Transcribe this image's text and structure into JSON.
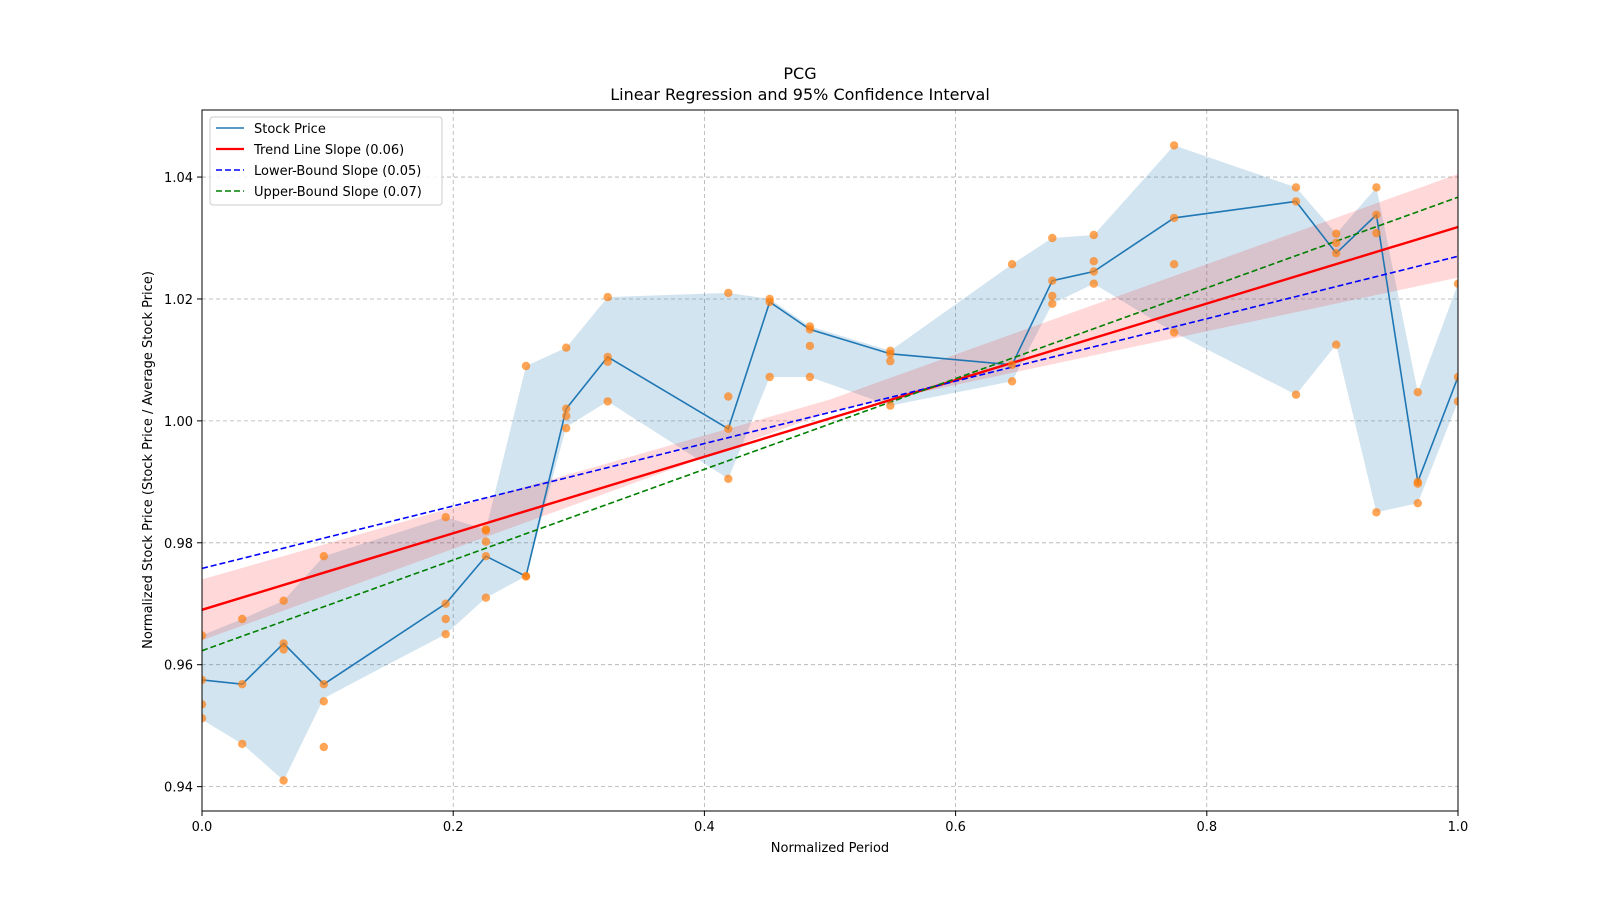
{
  "chart_data": {
    "type": "line",
    "title": "PCG",
    "subtitle": "Linear Regression and 95% Confidence Interval",
    "xlabel": "Normalized Period",
    "ylabel": "Normalized Stock Price (Stock Price / Average Stock Price)",
    "xlim": [
      0.0,
      1.0
    ],
    "ylim": [
      0.936,
      1.051
    ],
    "xticks": [
      0.0,
      0.2,
      0.4,
      0.6,
      0.8,
      1.0
    ],
    "xtick_labels": [
      "0.0",
      "0.2",
      "0.4",
      "0.6",
      "0.8",
      "1.0"
    ],
    "yticks": [
      0.94,
      0.96,
      0.98,
      1.0,
      1.02,
      1.04
    ],
    "ytick_labels": [
      "0.94",
      "0.96",
      "0.98",
      "1.00",
      "1.02",
      "1.04"
    ],
    "grid": true,
    "legend_position": "top-left",
    "legend": [
      {
        "label": "Stock Price",
        "color": "#1f77b4",
        "style": "solid"
      },
      {
        "label": "Trend Line Slope (0.06)",
        "color": "#ff0000",
        "style": "solid"
      },
      {
        "label": "Lower-Bound Slope (0.05)",
        "color": "#0000ff",
        "style": "dashed"
      },
      {
        "label": "Upper-Bound Slope (0.07)",
        "color": "#008000",
        "style": "dashed"
      }
    ],
    "colors": {
      "price_line": "#1f77b4",
      "price_band": "#1f77b4",
      "scatter": "#ff7f0e",
      "trend": "#ff0000",
      "trend_band": "#ff0000",
      "lower": "#0000ff",
      "upper": "#008000"
    },
    "price_series": {
      "name": "Stock Price",
      "x": [
        0.0,
        0.032,
        0.065,
        0.097,
        0.194,
        0.226,
        0.258,
        0.29,
        0.323,
        0.419,
        0.452,
        0.484,
        0.548,
        0.645,
        0.677,
        0.71,
        0.774,
        0.871,
        0.903,
        0.935,
        0.968,
        1.0
      ],
      "y": [
        0.9575,
        0.9568,
        0.9635,
        0.9568,
        0.97,
        0.9778,
        0.9745,
        1.002,
        1.0105,
        0.9987,
        1.0195,
        1.015,
        1.011,
        1.0092,
        1.023,
        1.0245,
        1.0333,
        1.036,
        1.0275,
        1.0338,
        0.99,
        1.0072
      ]
    },
    "price_band": {
      "x": [
        0.0,
        0.032,
        0.065,
        0.097,
        0.194,
        0.226,
        0.258,
        0.29,
        0.323,
        0.419,
        0.452,
        0.484,
        0.548,
        0.645,
        0.677,
        0.71,
        0.774,
        0.871,
        0.903,
        0.935,
        0.968,
        1.0
      ],
      "lower": [
        0.951,
        0.947,
        0.941,
        0.9545,
        0.965,
        0.971,
        0.9745,
        0.999,
        1.0032,
        0.9905,
        1.0072,
        1.0072,
        1.0025,
        1.0065,
        1.0192,
        1.0225,
        1.0145,
        1.0043,
        1.0125,
        0.985,
        0.9865,
        1.0032
      ],
      "upper": [
        0.9648,
        0.9675,
        0.9705,
        0.9778,
        0.9842,
        0.9822,
        1.009,
        1.012,
        1.0203,
        1.021,
        1.02,
        1.0155,
        1.0115,
        1.0257,
        1.03,
        1.0305,
        1.0452,
        1.0383,
        1.0307,
        1.0383,
        1.0047,
        1.0225
      ]
    },
    "scatter_points": {
      "x": [
        0.0,
        0.0,
        0.0,
        0.0,
        0.032,
        0.032,
        0.032,
        0.065,
        0.065,
        0.065,
        0.065,
        0.097,
        0.097,
        0.097,
        0.097,
        0.194,
        0.194,
        0.194,
        0.194,
        0.226,
        0.226,
        0.226,
        0.226,
        0.226,
        0.258,
        0.258,
        0.258,
        0.29,
        0.29,
        0.29,
        0.29,
        0.323,
        0.323,
        0.323,
        0.323,
        0.419,
        0.419,
        0.419,
        0.419,
        0.452,
        0.452,
        0.452,
        0.484,
        0.484,
        0.484,
        0.484,
        0.548,
        0.548,
        0.548,
        0.548,
        0.645,
        0.645,
        0.645,
        0.677,
        0.677,
        0.677,
        0.677,
        0.71,
        0.71,
        0.71,
        0.71,
        0.774,
        0.774,
        0.774,
        0.774,
        0.871,
        0.871,
        0.871,
        0.903,
        0.903,
        0.903,
        0.903,
        0.935,
        0.935,
        0.935,
        0.935,
        0.968,
        0.968,
        0.968,
        0.968,
        1.0,
        1.0,
        1.0
      ],
      "y": [
        0.9648,
        0.9575,
        0.9535,
        0.9512,
        0.9675,
        0.9568,
        0.947,
        0.9705,
        0.9635,
        0.9625,
        0.941,
        0.9778,
        0.9568,
        0.954,
        0.9465,
        0.9842,
        0.97,
        0.9675,
        0.965,
        0.9822,
        0.982,
        0.9802,
        0.9778,
        0.971,
        1.009,
        0.9745,
        0.9745,
        1.012,
        1.002,
        1.0008,
        0.9988,
        1.0203,
        1.0105,
        1.0097,
        1.0032,
        1.021,
        1.004,
        0.9987,
        0.9905,
        1.02,
        1.0195,
        1.0072,
        1.0155,
        1.015,
        1.0123,
        1.0072,
        1.0115,
        1.011,
        1.0098,
        1.0025,
        1.0257,
        1.0092,
        1.0065,
        1.03,
        1.023,
        1.0205,
        1.0192,
        1.0305,
        1.0262,
        1.0245,
        1.0225,
        1.0452,
        1.0333,
        1.0257,
        1.0145,
        1.0383,
        1.036,
        1.0043,
        1.0307,
        1.0292,
        1.0275,
        1.0125,
        1.0383,
        1.0338,
        1.0308,
        0.985,
        1.0047,
        0.99,
        0.9897,
        0.9865,
        1.0225,
        1.0072,
        1.0032
      ]
    },
    "trend_line": {
      "name": "Trend Line Slope (0.06)",
      "x": [
        0.0,
        1.0
      ],
      "y": [
        0.969,
        1.0318
      ]
    },
    "trend_band": {
      "x": [
        0.0,
        0.5,
        1.0
      ],
      "lower": [
        0.964,
        1.0015,
        1.0235
      ],
      "upper": [
        0.974,
        1.0035,
        1.0405
      ]
    },
    "lower_bound_line": {
      "name": "Lower-Bound Slope (0.05)",
      "x": [
        0.0,
        1.0
      ],
      "y": [
        0.9758,
        1.027
      ]
    },
    "upper_bound_line": {
      "name": "Upper-Bound Slope (0.07)",
      "x": [
        0.0,
        1.0
      ],
      "y": [
        0.9623,
        1.0367
      ]
    }
  }
}
